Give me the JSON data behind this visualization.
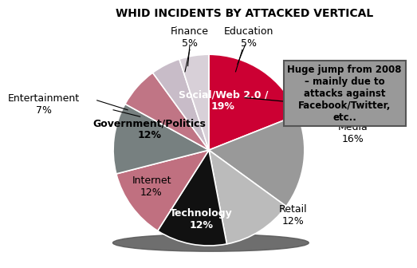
{
  "title": "WHID INCIDENTS BY ATTACKED VERTICAL",
  "sizes": [
    19,
    16,
    12,
    12,
    12,
    12,
    7,
    5,
    5
  ],
  "slice_labels": [
    "Social/Web 2.0 /\n19%",
    "Media\n16%",
    "Retail\n12%",
    "Technology\n12%",
    "Internet\n12%",
    "Government/Politics\n12%",
    "Entertainment\n7%",
    "Finance\n5%",
    "Education\n5%"
  ],
  "colors": [
    "#cc0033",
    "#999999",
    "#bbbbbb",
    "#111111",
    "#c07080",
    "#778080",
    "#c07585",
    "#c8bcc8",
    "#d8d0d8"
  ],
  "shadow_color": "#555555",
  "startangle": 90,
  "counterclock": false,
  "annotation_text": "Huge jump from 2008\n– mainly due to\nattacks against\nFacebook/Twitter,\netc..",
  "annotation_box_color": "#999999",
  "annotation_box_edge": "#555555",
  "label_fontsize": 9,
  "inside_label_color": "white",
  "outside_label_color": "black",
  "title_fontsize": 10
}
